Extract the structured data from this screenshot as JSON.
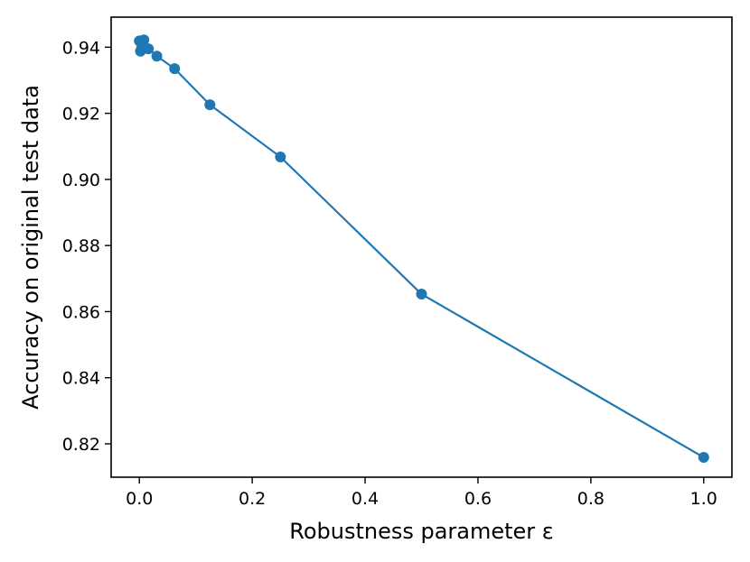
{
  "chart_data": {
    "type": "line",
    "title": "",
    "xlabel": "Robustness parameter ε",
    "ylabel": "Accuracy on original test data",
    "xlim": [
      -0.05,
      1.05
    ],
    "ylim": [
      0.8099,
      0.9491
    ],
    "xticks": [
      0.0,
      0.2,
      0.4,
      0.6,
      0.8,
      1.0
    ],
    "xtick_labels": [
      "0.0",
      "0.2",
      "0.4",
      "0.6",
      "0.8",
      "1.0"
    ],
    "yticks": [
      0.82,
      0.84,
      0.86,
      0.88,
      0.9,
      0.92,
      0.94
    ],
    "ytick_labels": [
      "0.82",
      "0.84",
      "0.86",
      "0.88",
      "0.90",
      "0.92",
      "0.94"
    ],
    "grid": false,
    "legend": "none",
    "series": [
      {
        "color": "#1f77b4",
        "marker": "circle",
        "points": [
          {
            "x": 0.0,
            "y": 0.9419
          },
          {
            "x": 0.002,
            "y": 0.9388
          },
          {
            "x": 0.004,
            "y": 0.9397
          },
          {
            "x": 0.008,
            "y": 0.9422
          },
          {
            "x": 0.016,
            "y": 0.9395
          },
          {
            "x": 0.031,
            "y": 0.9373
          },
          {
            "x": 0.0625,
            "y": 0.9335
          },
          {
            "x": 0.125,
            "y": 0.9226
          },
          {
            "x": 0.25,
            "y": 0.9068
          },
          {
            "x": 0.5,
            "y": 0.8653
          },
          {
            "x": 1.0,
            "y": 0.8159
          }
        ]
      }
    ]
  }
}
